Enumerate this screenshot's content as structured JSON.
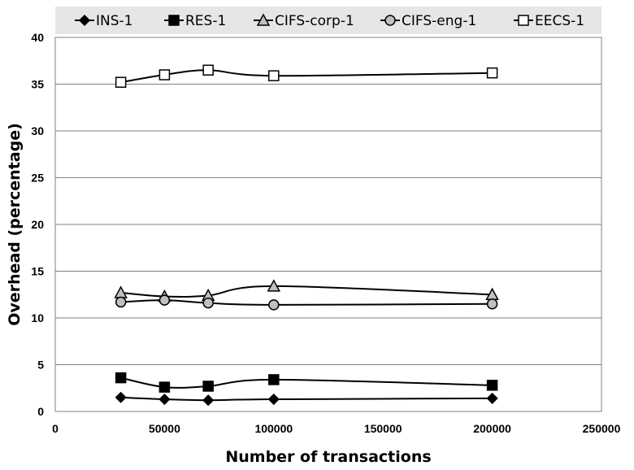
{
  "chart_data": {
    "type": "line",
    "xlabel": "Number of transactions",
    "ylabel": "Overhead (percentage)",
    "xlim": [
      0,
      250000
    ],
    "ylim": [
      0,
      40
    ],
    "xticks": [
      "0",
      "50000",
      "100000",
      "150000",
      "200000",
      "250000"
    ],
    "yticks": [
      "0",
      "5",
      "10",
      "15",
      "20",
      "25",
      "30",
      "35",
      "40"
    ],
    "grid": "horizontal",
    "legend_position": "top",
    "x": [
      30000,
      50000,
      70000,
      100000,
      200000
    ],
    "series": [
      {
        "name": "INS-1",
        "marker": "diamond",
        "fill": "#000000",
        "values": [
          1.5,
          1.3,
          1.2,
          1.3,
          1.4
        ]
      },
      {
        "name": "RES-1",
        "marker": "square",
        "fill": "#000000",
        "values": [
          3.6,
          2.6,
          2.7,
          3.4,
          2.8
        ]
      },
      {
        "name": "CIFS-corp-1",
        "marker": "triangle",
        "fill": "#bfbfbf",
        "values": [
          12.7,
          12.3,
          12.4,
          13.4,
          12.5
        ]
      },
      {
        "name": "CIFS-eng-1",
        "marker": "circle",
        "fill": "#bfbfbf",
        "values": [
          11.7,
          11.9,
          11.6,
          11.4,
          11.5
        ]
      },
      {
        "name": "EECS-1",
        "marker": "square",
        "fill": "#ffffff",
        "values": [
          35.2,
          36.0,
          36.5,
          35.9,
          36.2
        ]
      }
    ]
  }
}
